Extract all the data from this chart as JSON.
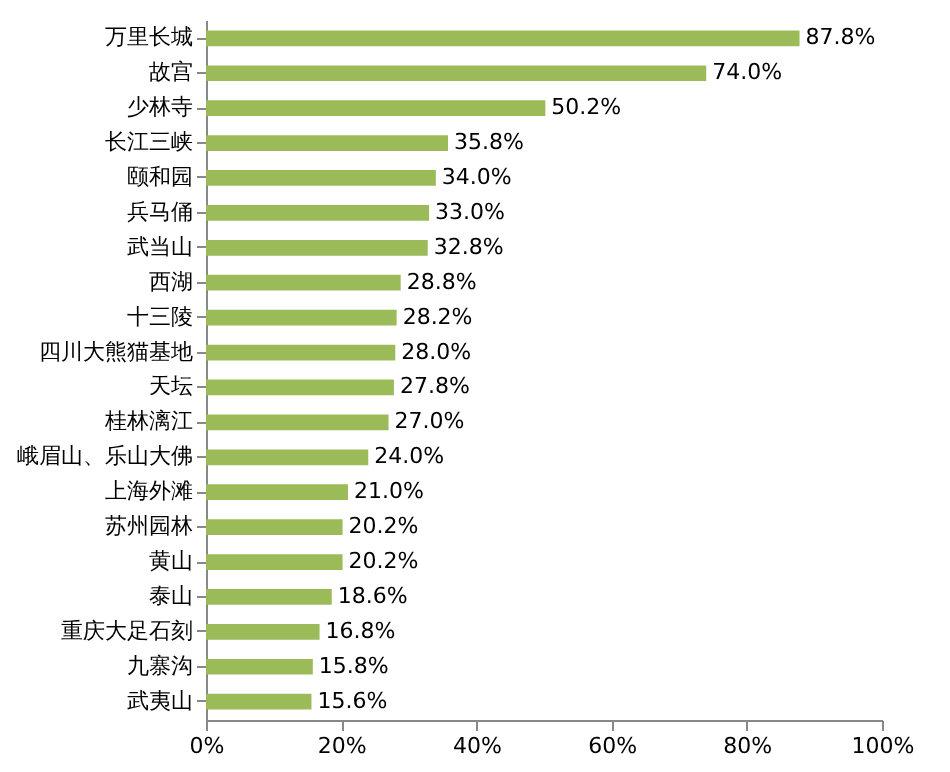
{
  "chart_data": {
    "type": "bar",
    "orientation": "horizontal",
    "categories": [
      "万里长城",
      "故宫",
      "少林寺",
      "长江三峡",
      "颐和园",
      "兵马俑",
      "武当山",
      "西湖",
      "十三陵",
      "四川大熊猫基地",
      "天坛",
      "桂林漓江",
      "峨眉山、乐山大佛",
      "上海外滩",
      "苏州园林",
      "黄山",
      "泰山",
      "重庆大足石刻",
      "九寨沟",
      "武夷山"
    ],
    "values": [
      87.8,
      74.0,
      50.2,
      35.8,
      34.0,
      33.0,
      32.8,
      28.8,
      28.2,
      28.0,
      27.8,
      27.0,
      24.0,
      21.0,
      20.2,
      20.2,
      18.6,
      16.8,
      15.8,
      15.6
    ],
    "value_labels": [
      "87.8%",
      "74.0%",
      "50.2%",
      "35.8%",
      "34.0%",
      "33.0%",
      "32.8%",
      "28.8%",
      "28.2%",
      "28.0%",
      "27.8%",
      "27.0%",
      "24.0%",
      "21.0%",
      "20.2%",
      "20.2%",
      "18.6%",
      "16.8%",
      "15.8%",
      "15.6%"
    ],
    "color": "#9bbb59",
    "xlim": [
      0,
      100
    ],
    "xticks": [
      {
        "value": 0,
        "label": "0%"
      },
      {
        "value": 20,
        "label": "20%"
      },
      {
        "value": 40,
        "label": "40%"
      },
      {
        "value": 60,
        "label": "60%"
      },
      {
        "value": 80,
        "label": "80%"
      },
      {
        "value": 100,
        "label": "100%"
      }
    ],
    "grid": false
  }
}
